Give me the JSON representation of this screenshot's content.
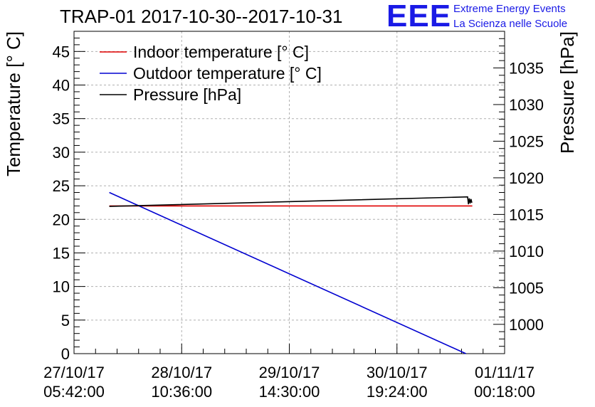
{
  "header": {
    "title": "TRAP-01 2017-10-30--2017-10-31",
    "logo_text": "EEE",
    "logo_line1": "Extreme Energy Events",
    "logo_line2": "La Scienza nelle Scuole"
  },
  "colors": {
    "indoor": "#e00000",
    "outdoor": "#0000d0",
    "pressure": "#000000",
    "logo": "#1a1ae6",
    "grid": "#b0b0b0"
  },
  "chart_data": {
    "type": "line",
    "title": "TRAP-01 2017-10-30--2017-10-31",
    "xlabel": "",
    "ylabel": "Temperature [° C]",
    "y2label": "Pressure [hPa]",
    "xlim": [
      0,
      1.0
    ],
    "x_tick_labels": [
      {
        "x": 0.0,
        "date": "27/10/17",
        "time": "05:42:00"
      },
      {
        "x": 0.25,
        "date": "28/10/17",
        "time": "10:36:00"
      },
      {
        "x": 0.5,
        "date": "29/10/17",
        "time": "14:30:00"
      },
      {
        "x": 0.75,
        "date": "30/10/17",
        "time": "19:24:00"
      },
      {
        "x": 1.0,
        "date": "01/11/17",
        "time": "00:18:00"
      }
    ],
    "ylim": [
      0,
      48
    ],
    "y_ticks": [
      0,
      5,
      10,
      15,
      20,
      25,
      30,
      35,
      40,
      45
    ],
    "y2lim": [
      996,
      1040
    ],
    "y2_ticks": [
      1000,
      1005,
      1010,
      1015,
      1020,
      1025,
      1030,
      1035
    ],
    "grid": true,
    "legend_position": "top-left",
    "series": [
      {
        "name": "Indoor temperature [° C]",
        "axis": "left",
        "color_key": "indoor",
        "x": [
          0.082,
          0.925
        ],
        "y": [
          22.0,
          22.0
        ]
      },
      {
        "name": "Outdoor temperature [° C]",
        "axis": "left",
        "color_key": "outdoor",
        "x": [
          0.082,
          0.91
        ],
        "y": [
          24.0,
          0.0
        ]
      },
      {
        "name": "Pressure [hPa]",
        "axis": "right",
        "color_key": "pressure",
        "x": [
          0.082,
          0.914,
          0.916,
          0.918,
          0.92,
          0.922,
          0.924
        ],
        "y": [
          1016.1,
          1017.4,
          1016.4,
          1017.2,
          1016.5,
          1017.1,
          1016.6
        ]
      }
    ]
  }
}
